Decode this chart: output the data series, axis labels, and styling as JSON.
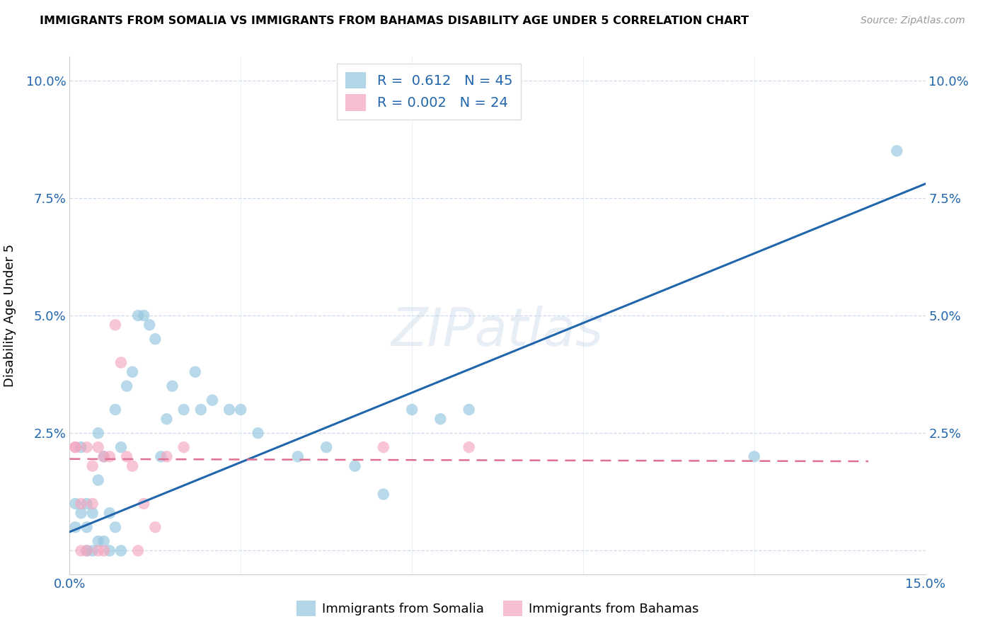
{
  "title": "IMMIGRANTS FROM SOMALIA VS IMMIGRANTS FROM BAHAMAS DISABILITY AGE UNDER 5 CORRELATION CHART",
  "source": "Source: ZipAtlas.com",
  "ylabel": "Disability Age Under 5",
  "xlim": [
    0.0,
    0.15
  ],
  "ylim": [
    -0.005,
    0.105
  ],
  "yticks": [
    0.0,
    0.025,
    0.05,
    0.075,
    0.1
  ],
  "ytick_labels": [
    "",
    "2.5%",
    "5.0%",
    "7.5%",
    "10.0%"
  ],
  "xticks": [
    0.0,
    0.03,
    0.06,
    0.09,
    0.12,
    0.15
  ],
  "xtick_labels": [
    "0.0%",
    "",
    "",
    "",
    "",
    "15.0%"
  ],
  "somalia_R": 0.612,
  "somalia_N": 45,
  "bahamas_R": 0.002,
  "bahamas_N": 24,
  "somalia_color": "#92c5de",
  "bahamas_color": "#f4a6c0",
  "somalia_line_color": "#2166ac",
  "bahamas_line_color": "#e07090",
  "watermark": "ZIPatlas",
  "somalia_x": [
    0.001,
    0.001,
    0.002,
    0.002,
    0.003,
    0.003,
    0.003,
    0.004,
    0.004,
    0.005,
    0.005,
    0.005,
    0.006,
    0.006,
    0.007,
    0.007,
    0.008,
    0.008,
    0.009,
    0.009,
    0.01,
    0.011,
    0.012,
    0.013,
    0.014,
    0.015,
    0.016,
    0.017,
    0.018,
    0.02,
    0.022,
    0.023,
    0.025,
    0.028,
    0.03,
    0.033,
    0.04,
    0.045,
    0.05,
    0.055,
    0.06,
    0.065,
    0.07,
    0.12,
    0.145
  ],
  "somalia_y": [
    0.005,
    0.01,
    0.008,
    0.022,
    0.0,
    0.005,
    0.01,
    0.0,
    0.008,
    0.002,
    0.015,
    0.025,
    0.002,
    0.02,
    0.0,
    0.008,
    0.005,
    0.03,
    0.0,
    0.022,
    0.035,
    0.038,
    0.05,
    0.05,
    0.048,
    0.045,
    0.02,
    0.028,
    0.035,
    0.03,
    0.038,
    0.03,
    0.032,
    0.03,
    0.03,
    0.025,
    0.02,
    0.022,
    0.018,
    0.012,
    0.03,
    0.028,
    0.03,
    0.02,
    0.085
  ],
  "bahamas_x": [
    0.001,
    0.001,
    0.002,
    0.002,
    0.003,
    0.003,
    0.004,
    0.004,
    0.005,
    0.005,
    0.006,
    0.006,
    0.007,
    0.008,
    0.009,
    0.01,
    0.011,
    0.012,
    0.013,
    0.015,
    0.017,
    0.02,
    0.055,
    0.07
  ],
  "bahamas_y": [
    0.022,
    0.022,
    0.0,
    0.01,
    0.0,
    0.022,
    0.018,
    0.01,
    0.0,
    0.022,
    0.0,
    0.02,
    0.02,
    0.048,
    0.04,
    0.02,
    0.018,
    0.0,
    0.01,
    0.005,
    0.02,
    0.022,
    0.022,
    0.022
  ],
  "somalia_line_x": [
    0.0,
    0.15
  ],
  "somalia_line_y": [
    0.004,
    0.078
  ],
  "bahamas_line_x": [
    0.0,
    0.14
  ],
  "bahamas_line_y": [
    0.0195,
    0.019
  ]
}
